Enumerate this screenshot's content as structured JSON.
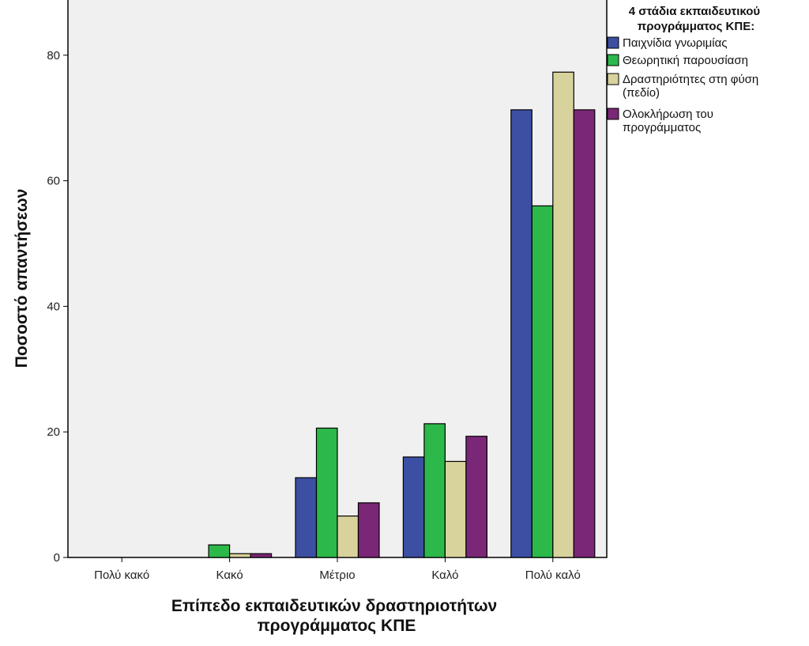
{
  "chart_data": {
    "type": "bar",
    "title": "",
    "categories": [
      "Πολύ κακό",
      "Κακό",
      "Μέτριο",
      "Καλό",
      "Πολύ καλό"
    ],
    "series": [
      {
        "name": "Παιχνίδια γνωριμίας",
        "color": "#3D4FA3",
        "values": [
          0,
          0,
          12.7,
          16.0,
          71.3
        ]
      },
      {
        "name": "Θεωρητική παρουσίαση",
        "color": "#2DB84A",
        "values": [
          0,
          2.0,
          20.6,
          21.3,
          56.0
        ]
      },
      {
        "name": "Δραστηριότητες στη φύση (πεδίο)",
        "color": "#D8D29C",
        "values": [
          0,
          0.6,
          6.6,
          15.3,
          77.3
        ]
      },
      {
        "name": "Ολοκλήρωση του προγράμματος",
        "color": "#7B2777",
        "values": [
          0,
          0.6,
          8.7,
          19.3,
          71.3
        ]
      }
    ],
    "xlabel": "Επίπεδο εκπαιδευτικών δραστηριοτήτων προγράμματος ΚΠΕ",
    "xlabel_lines": [
      "Επίπεδο εκπαιδευτικών δραστηριοτήτων",
      "προγράμματος ΚΠΕ"
    ],
    "ylabel": "Ποσοστό απαντήσεων",
    "ylim": [
      0,
      89
    ],
    "yticks": [
      0,
      20,
      40,
      60,
      80
    ],
    "grid": false,
    "plot_background": "#F0F0F0",
    "legend": {
      "placement": "right",
      "title_lines": [
        "4 στάδια εκπαιδευτικού",
        "προγράμματος ΚΠΕ:"
      ],
      "entries": [
        {
          "lines": [
            "Παιχνίδια γνωριμίας"
          ]
        },
        {
          "lines": [
            "Θεωρητική παρουσίαση"
          ]
        },
        {
          "lines": [
            "Δραστηριότητες στη φύση",
            "(πεδίο)"
          ]
        },
        {
          "lines": [
            "Ολοκλήρωση του",
            "προγράμματος"
          ]
        }
      ]
    }
  }
}
